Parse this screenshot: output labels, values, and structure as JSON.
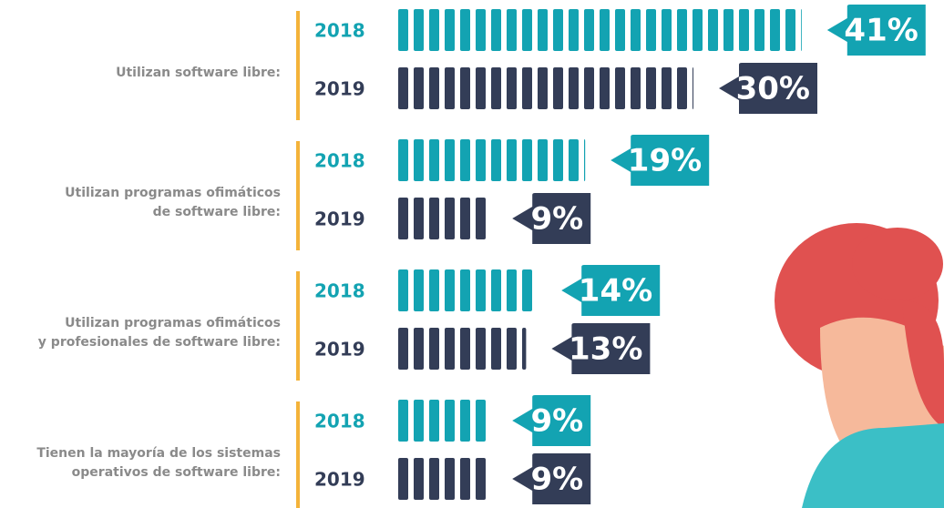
{
  "chart_data": {
    "type": "segmented-bar",
    "categories": [
      "Utilizan software libre:",
      "Utilizan programas ofimáticos\nde software libre:",
      "Utilizan programas ofimáticos\ny profesionales de software libre:",
      "Tienen la mayoría de los sistemas\noperativos de software libre:"
    ],
    "series": [
      {
        "name": "2018",
        "color": "#13a3b2",
        "values": [
          41,
          19,
          14,
          9
        ],
        "value_labels": [
          "41%",
          "19%",
          "14%",
          "9%"
        ]
      },
      {
        "name": "2019",
        "color": "#333d57",
        "values": [
          30,
          9,
          13,
          9
        ],
        "value_labels": [
          "30%",
          "9%",
          "13%",
          "9%"
        ]
      }
    ]
  }
}
